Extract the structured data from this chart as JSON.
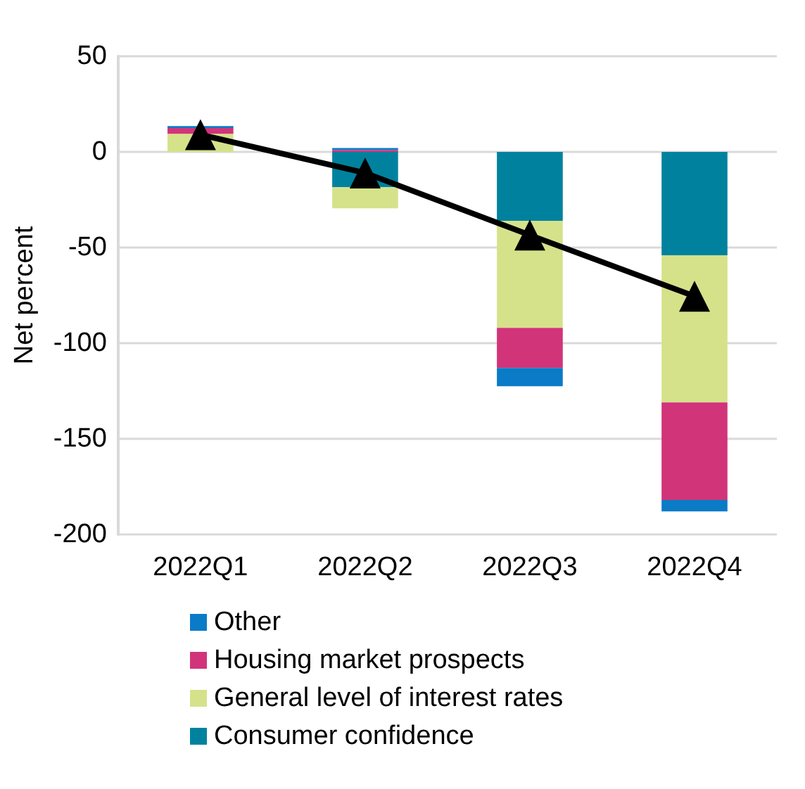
{
  "chart_data": {
    "type": "bar",
    "stacked": true,
    "ylabel": "Net percent",
    "categories": [
      "2022Q1",
      "2022Q2",
      "2022Q3",
      "2022Q4"
    ],
    "series": [
      {
        "name": "Consumer confidence",
        "color": "#00829e",
        "values": [
          0,
          -18.5,
          -36,
          -54
        ]
      },
      {
        "name": "General level of interest rates",
        "color": "#d5e28a",
        "values": [
          9.5,
          -11,
          -56,
          -77
        ]
      },
      {
        "name": "Housing market prospects",
        "color": "#d13479",
        "values": [
          3,
          1,
          -21,
          -51
        ]
      },
      {
        "name": "Other",
        "color": "#0a7bc6",
        "values": [
          1,
          1,
          -9.5,
          -6
        ]
      },
      {
        "type": "line",
        "color": "#000000",
        "marker": "triangle",
        "values": [
          9,
          -11,
          -43.5,
          -75.5
        ]
      }
    ],
    "ylim": [
      -200,
      50
    ],
    "yticks": [
      -200,
      -150,
      -100,
      -50,
      0,
      50
    ],
    "grid": "y",
    "legend": "bottom"
  }
}
